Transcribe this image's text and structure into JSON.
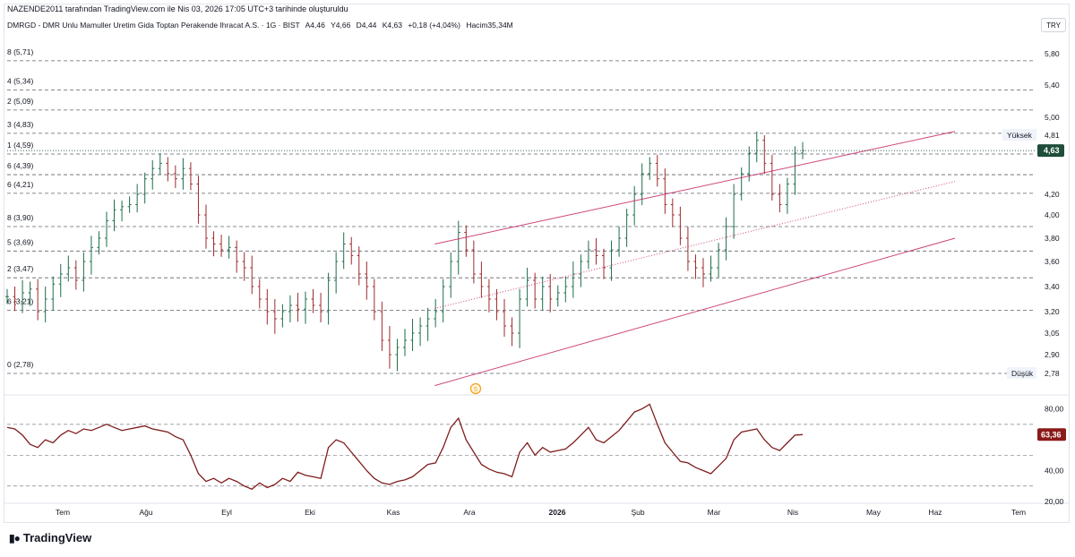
{
  "header": {
    "publish_line": "NAZENDE2011 tarafından TradingView.com ile Nis 03, 2026 17:05 UTC+3 tarihinde oluşturuldu",
    "symbol_line": "DMRGD - DMR Unlu Mamuller Uretim Gida Toptan Perakende Ihracat A.S. · 1G · BIST",
    "open": "A4,46",
    "high": "Y4,66",
    "low": "D4,44",
    "close": "K4,63",
    "change": "+0,18 (+4,04%)",
    "volume": "Hacim35,34M",
    "currency": "TRY"
  },
  "brand": {
    "name": "TradingView",
    "icon": "tradingview-logo-icon"
  },
  "chart_data": [
    {
      "type": "line",
      "subtype": "ohlc-bar-daily",
      "title": "",
      "ylim": [
        2.7,
        6.0
      ],
      "y_ticks": [
        "5,80",
        "5,40",
        "5,00",
        "4,20",
        "4,00",
        "3,80",
        "3,60",
        "3,40",
        "3,20",
        "3,05",
        "2,90"
      ],
      "x_months": [
        "Tem",
        "Ağu",
        "Eyl",
        "Eki",
        "Kas",
        "Ara",
        "2026",
        "Şub",
        "Mar",
        "Nis",
        "May",
        "Haz",
        "Tem"
      ],
      "fib_levels": [
        {
          "label": "8 (5,71)",
          "price": 5.71
        },
        {
          "label": "4 (5,34)",
          "price": 5.34
        },
        {
          "label": "2 (5,09)",
          "price": 5.09
        },
        {
          "label": "3 (4,83)",
          "price": 4.83
        },
        {
          "label": "1 (4,59)",
          "price": 4.59
        },
        {
          "label": "6 (4,39)",
          "price": 4.39
        },
        {
          "label": "6 (4,21)",
          "price": 4.21
        },
        {
          "label": "8 (3,90)",
          "price": 3.9
        },
        {
          "label": "5 (3,69)",
          "price": 3.69
        },
        {
          "label": "2 (3,47)",
          "price": 3.47
        },
        {
          "label": "6 (3,21)",
          "price": 3.21
        },
        {
          "label": "0 (2,78)",
          "price": 2.78
        }
      ],
      "price_labels": {
        "high_label": "Yüksek",
        "high_value": "4,81",
        "high_price": 4.81,
        "last_value": "4,63",
        "last_price": 4.63,
        "low_label": "Düşük",
        "low_value": "2,78",
        "low_price": 2.78
      },
      "channel": {
        "start": {
          "x": 0.415,
          "y": 3.75
        },
        "end": {
          "x": 0.92,
          "y": 4.85
        },
        "width": 1.05
      },
      "closes": [
        3.32,
        3.28,
        3.35,
        3.38,
        3.2,
        3.3,
        3.42,
        3.5,
        3.55,
        3.45,
        3.6,
        3.72,
        3.8,
        3.95,
        4.05,
        4.08,
        4.1,
        4.2,
        4.35,
        4.45,
        4.5,
        4.4,
        4.35,
        4.45,
        4.3,
        4.0,
        3.8,
        3.75,
        3.7,
        3.72,
        3.6,
        3.55,
        3.4,
        3.3,
        3.2,
        3.15,
        3.2,
        3.25,
        3.22,
        3.3,
        3.25,
        3.2,
        3.45,
        3.6,
        3.75,
        3.65,
        3.5,
        3.4,
        3.2,
        3.0,
        2.9,
        2.95,
        3.0,
        3.05,
        3.1,
        3.15,
        3.2,
        3.4,
        3.6,
        3.85,
        3.7,
        3.5,
        3.4,
        3.3,
        3.2,
        3.1,
        3.05,
        3.3,
        3.45,
        3.3,
        3.4,
        3.3,
        3.35,
        3.4,
        3.5,
        3.6,
        3.7,
        3.65,
        3.55,
        3.7,
        3.8,
        4.0,
        4.2,
        4.4,
        4.5,
        4.35,
        4.1,
        4.0,
        3.8,
        3.6,
        3.55,
        3.5,
        3.55,
        3.7,
        3.9,
        4.2,
        4.4,
        4.6,
        4.75,
        4.5,
        4.2,
        4.1,
        4.3,
        4.6,
        4.63
      ]
    },
    {
      "type": "line",
      "subtype": "rsi",
      "ylim": [
        20,
        85
      ],
      "y_ticks": [
        "80,00",
        "40,00",
        "20,00"
      ],
      "last_value": "63,36",
      "last_numeric": 63.36,
      "guide_levels": [
        70,
        50,
        30
      ],
      "values": [
        68,
        67,
        63,
        57,
        55,
        60,
        58,
        63,
        66,
        64,
        67,
        66,
        68,
        70,
        68,
        66,
        67,
        68,
        69,
        67,
        66,
        65,
        62,
        60,
        50,
        38,
        33,
        35,
        32,
        35,
        33,
        30,
        28,
        32,
        29,
        31,
        35,
        33,
        39,
        37,
        36,
        35,
        55,
        60,
        58,
        52,
        46,
        40,
        35,
        32,
        31,
        33,
        34,
        36,
        40,
        44,
        45,
        55,
        68,
        74,
        60,
        52,
        44,
        41,
        39,
        38,
        36,
        52,
        58,
        50,
        55,
        52,
        53,
        54,
        58,
        63,
        68,
        60,
        58,
        62,
        66,
        72,
        78,
        80,
        83,
        70,
        58,
        52,
        46,
        45,
        42,
        40,
        38,
        43,
        48,
        60,
        65,
        66,
        67,
        60,
        55,
        53,
        58,
        63,
        63.36
      ]
    }
  ],
  "events": [
    {
      "marker": "S",
      "icon": "split-event-icon"
    }
  ],
  "colors": {
    "up_bar": "#1e6e48",
    "down_bar": "#9e2a2b",
    "channel": "#c2185b",
    "rsi_line": "#7f1d1d",
    "last_price_bg": "#1f4d3a",
    "rsi_label_bg": "#8b1a1a",
    "event": "#f59e0b"
  }
}
